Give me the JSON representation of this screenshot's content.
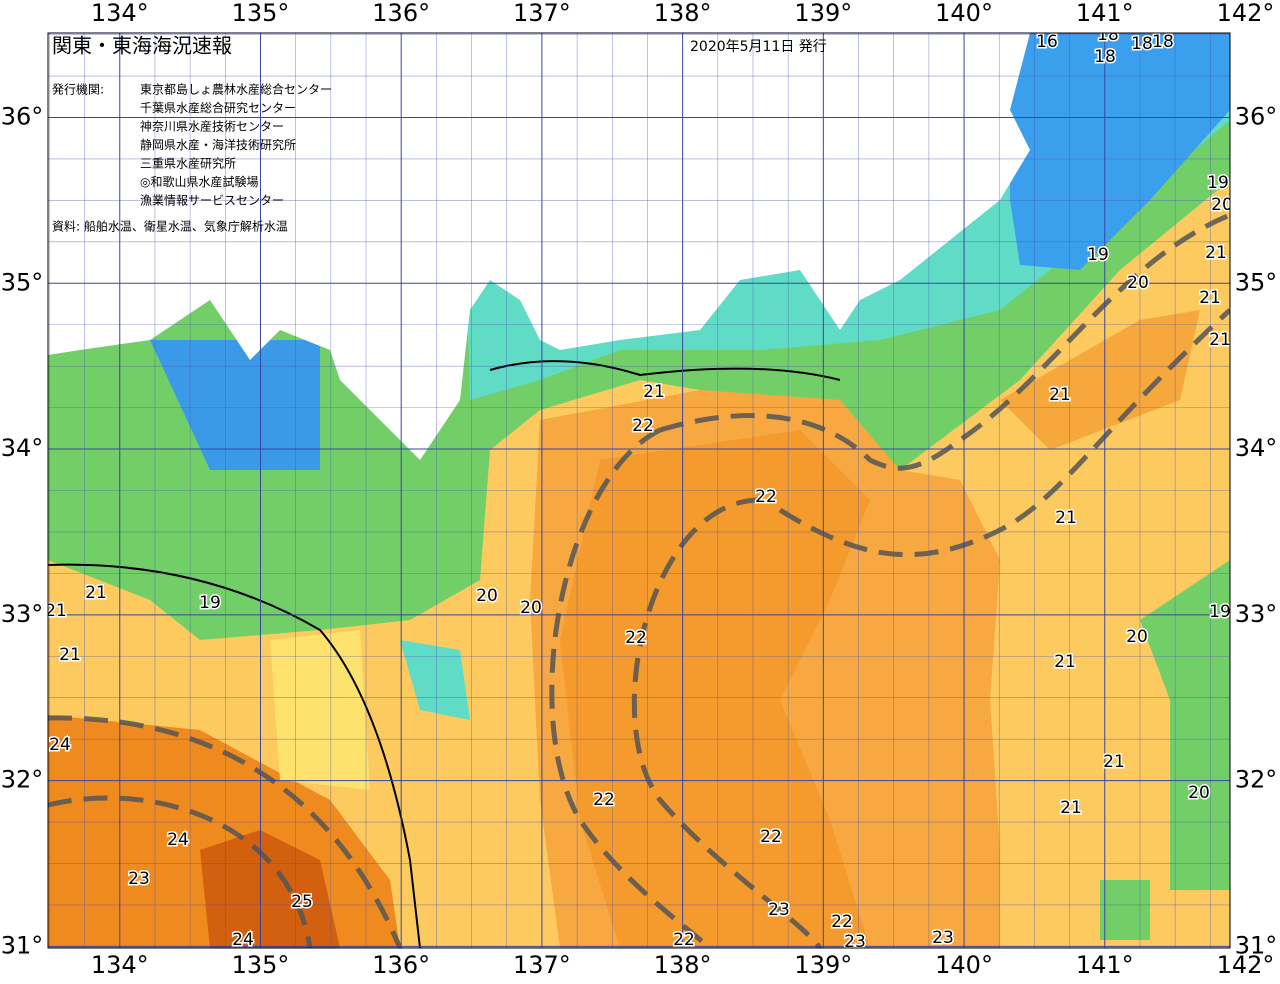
{
  "header": {
    "title": "関東・東海海況速報",
    "date": "2020年5月11日 発行"
  },
  "publisher": {
    "label": "発行機関:",
    "agencies": [
      "東京都島しょ農林水産総合センター",
      "千葉県水産総合研究センター",
      "神奈川県水産技術センター",
      "静岡県水産・海洋技術研究所",
      "三重県水産研究所",
      "◎和歌山県水産試験場",
      "漁業情報サービスセンター"
    ]
  },
  "source": "資料: 船舶水温、衛星水温、気象庁解析水温",
  "map": {
    "lonlim": [
      133.49,
      141.89
    ],
    "latlim": [
      30.99,
      36.51
    ],
    "lon_ticks": [
      {
        "value": 134,
        "label": "134°"
      },
      {
        "value": 135,
        "label": "135°"
      },
      {
        "value": 136,
        "label": "136°"
      },
      {
        "value": 137,
        "label": "137°"
      },
      {
        "value": 138,
        "label": "138°"
      },
      {
        "value": 139,
        "label": "139°"
      },
      {
        "value": 140,
        "label": "140°"
      },
      {
        "value": 141,
        "label": "141°"
      },
      {
        "value": 142,
        "label": "142°"
      }
    ],
    "lat_ticks": [
      {
        "value": 31,
        "label": "31°"
      },
      {
        "value": 32,
        "label": "32°"
      },
      {
        "value": 33,
        "label": "33°"
      },
      {
        "value": 34,
        "label": "34°"
      },
      {
        "value": 35,
        "label": "35°"
      },
      {
        "value": 36,
        "label": "36°"
      }
    ],
    "contour_labels": [
      16,
      18,
      18,
      18,
      18,
      19,
      20,
      19,
      21,
      20,
      21,
      21,
      21,
      21,
      22,
      22,
      21,
      21,
      19,
      20,
      20,
      21,
      22,
      21,
      20,
      21,
      19,
      24,
      21,
      22,
      20,
      21,
      24,
      22,
      23,
      25,
      23,
      22,
      24,
      22,
      23,
      23
    ]
  }
}
